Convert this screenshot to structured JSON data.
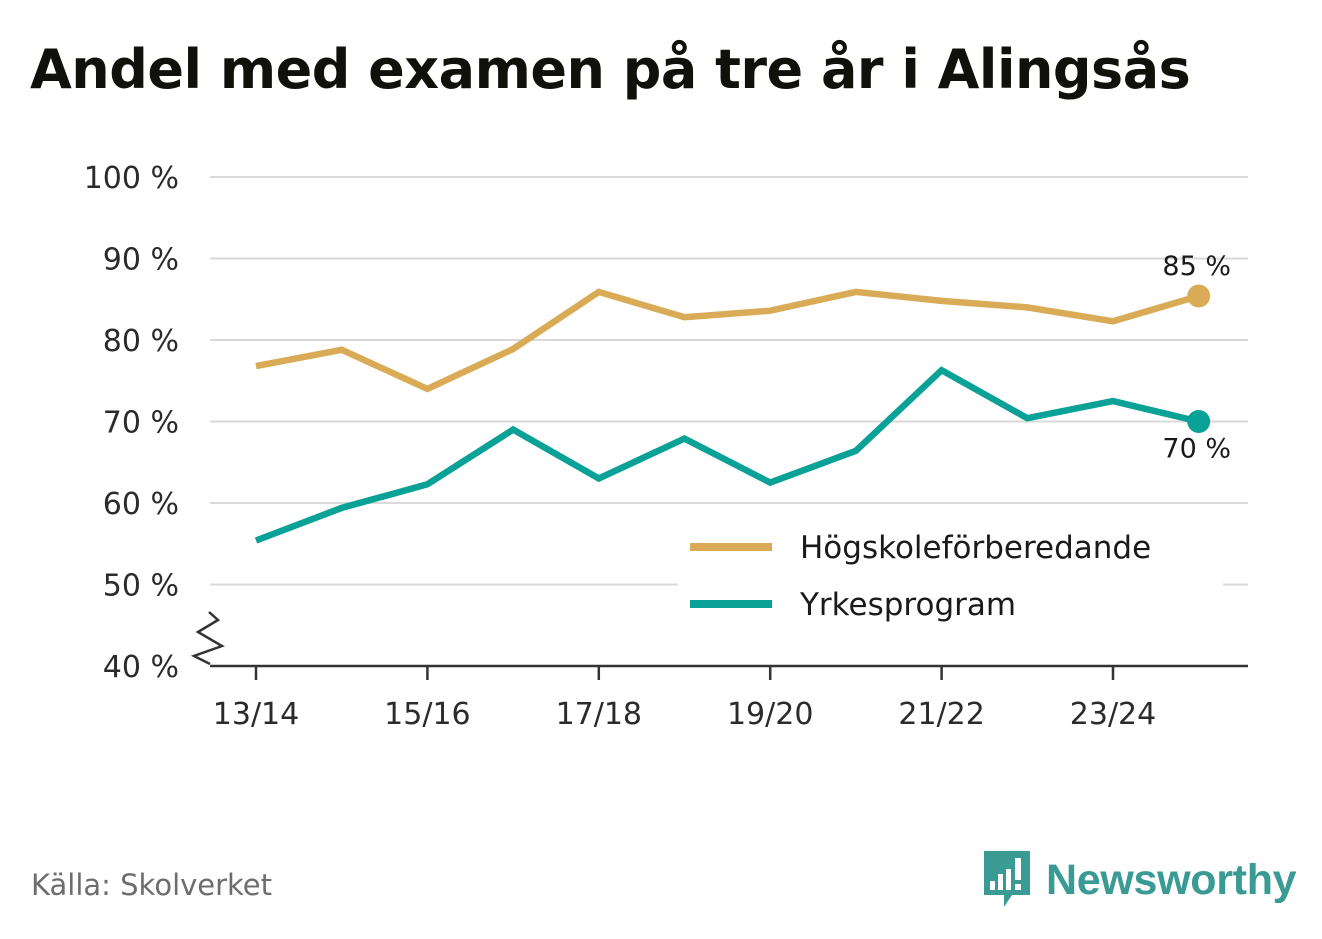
{
  "title": "Andel med examen på tre år i Alingsås",
  "source": "Källa: Skolverket",
  "brand": {
    "name": "Newsworthy",
    "logo_icon": "bar-chart-speech-bubble-icon",
    "color": "#3a9b94"
  },
  "chart_data": {
    "type": "line",
    "title": "Andel med examen på tre år i Alingsås",
    "xlabel": "",
    "ylabel": "",
    "x": [
      "13/14",
      "14/15",
      "15/16",
      "16/17",
      "17/18",
      "18/19",
      "19/20",
      "20/21",
      "21/22",
      "22/23",
      "23/24",
      "24/25"
    ],
    "x_tick_labels": [
      "13/14",
      "15/16",
      "17/18",
      "19/20",
      "21/22",
      "23/24"
    ],
    "y_ticks": [
      "40 %",
      "50 %",
      "60 %",
      "70 %",
      "80 %",
      "90 %",
      "100 %"
    ],
    "ylim": [
      40,
      100
    ],
    "y_axis_break": true,
    "grid": true,
    "legend_position": "bottom-right",
    "series": [
      {
        "name": "Högskoleförberedande",
        "color": "#d9ab57",
        "values": [
          76.8,
          78.8,
          74.0,
          78.9,
          85.9,
          82.8,
          83.6,
          85.9,
          84.8,
          84.0,
          82.3,
          85.4
        ],
        "end_label": "85 %"
      },
      {
        "name": "Yrkesprogram",
        "color": "#0aa196",
        "values": [
          55.4,
          59.4,
          62.3,
          69.0,
          63.0,
          67.9,
          62.5,
          66.4,
          76.3,
          70.4,
          72.5,
          70.0
        ],
        "end_label": "70 %"
      }
    ]
  }
}
